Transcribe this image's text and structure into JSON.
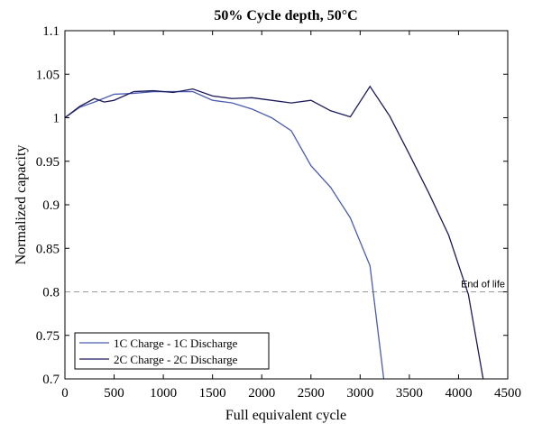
{
  "chart_data": {
    "type": "line",
    "title": "50% Cycle depth, 50°C",
    "xlabel": "Full equivalent cycle",
    "ylabel": "Normalized capacity",
    "series": [
      {
        "name": "1C Charge - 1C Discharge",
        "color": "#4a5cb0",
        "x": [
          0,
          150,
          300,
          500,
          700,
          900,
          1100,
          1300,
          1500,
          1700,
          1900,
          2100,
          2300,
          2500,
          2700,
          2900,
          3100,
          3240
        ],
        "values": [
          1.0,
          1.012,
          1.018,
          1.027,
          1.028,
          1.03,
          1.03,
          1.03,
          1.02,
          1.017,
          1.01,
          1.0,
          0.985,
          0.945,
          0.92,
          0.885,
          0.83,
          0.7
        ]
      },
      {
        "name": "2C Charge - 2C Discharge",
        "color": "#1c1a5c",
        "x": [
          0,
          150,
          300,
          400,
          500,
          700,
          900,
          1100,
          1300,
          1500,
          1700,
          1900,
          2100,
          2300,
          2500,
          2700,
          2900,
          3100,
          3300,
          3500,
          3700,
          3900,
          4100,
          4250
        ],
        "values": [
          1.0,
          1.013,
          1.022,
          1.018,
          1.02,
          1.03,
          1.031,
          1.029,
          1.033,
          1.025,
          1.022,
          1.023,
          1.02,
          1.017,
          1.02,
          1.008,
          1.001,
          1.036,
          1.002,
          0.958,
          0.913,
          0.865,
          0.797,
          0.7
        ]
      }
    ],
    "end_of_life": {
      "value": 0.8,
      "label": "End of life"
    },
    "xlim": [
      0,
      4500
    ],
    "xticks": [
      0,
      500,
      1000,
      1500,
      2000,
      2500,
      3000,
      3500,
      4000,
      4500
    ],
    "ylim": [
      0.7,
      1.1
    ],
    "yticks": [
      0.7,
      0.75,
      0.8,
      0.85,
      0.9,
      0.95,
      1,
      1.05,
      1.1
    ],
    "legend": "lower left"
  }
}
